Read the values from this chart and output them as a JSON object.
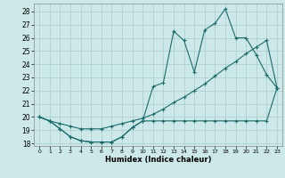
{
  "xlabel": "Humidex (Indice chaleur)",
  "bg_color": "#cde8e8",
  "line_color": "#1a6b6b",
  "xlim": [
    -0.5,
    23.5
  ],
  "ylim": [
    17.8,
    28.6
  ],
  "yticks": [
    18,
    19,
    20,
    21,
    22,
    23,
    24,
    25,
    26,
    27,
    28
  ],
  "xticks": [
    0,
    1,
    2,
    3,
    4,
    5,
    6,
    7,
    8,
    9,
    10,
    11,
    12,
    13,
    14,
    15,
    16,
    17,
    18,
    19,
    20,
    21,
    22,
    23
  ],
  "line_min_x": [
    0,
    1,
    2,
    3,
    4,
    5,
    6,
    7,
    8,
    9,
    10,
    11,
    12,
    13,
    14,
    15,
    16,
    17,
    18,
    19,
    20,
    21,
    22,
    23
  ],
  "line_min_y": [
    20.0,
    19.7,
    19.1,
    18.5,
    18.2,
    18.1,
    18.1,
    18.1,
    18.5,
    19.2,
    19.7,
    19.7,
    19.7,
    19.7,
    19.7,
    19.7,
    19.7,
    19.7,
    19.7,
    19.7,
    19.7,
    19.7,
    19.7,
    22.2
  ],
  "line_max_x": [
    0,
    1,
    2,
    3,
    4,
    5,
    6,
    7,
    8,
    9,
    10,
    11,
    12,
    13,
    14,
    15,
    16,
    17,
    18,
    19,
    20,
    21,
    22,
    23
  ],
  "line_max_y": [
    20.0,
    19.7,
    19.1,
    18.5,
    18.2,
    18.1,
    18.1,
    18.1,
    18.5,
    19.2,
    19.7,
    22.3,
    22.6,
    26.5,
    25.8,
    23.4,
    26.6,
    27.1,
    28.2,
    26.0,
    26.0,
    24.7,
    23.2,
    22.2
  ],
  "line_mid_x": [
    0,
    1,
    2,
    3,
    4,
    5,
    6,
    7,
    8,
    9,
    10,
    11,
    12,
    13,
    14,
    15,
    16,
    17,
    18,
    19,
    20,
    21,
    22,
    23
  ],
  "line_mid_y": [
    20.0,
    19.7,
    19.5,
    19.3,
    19.1,
    19.1,
    19.1,
    19.3,
    19.5,
    19.7,
    19.9,
    20.2,
    20.6,
    21.1,
    21.5,
    22.0,
    22.5,
    23.1,
    23.7,
    24.2,
    24.8,
    25.3,
    25.8,
    22.2
  ]
}
